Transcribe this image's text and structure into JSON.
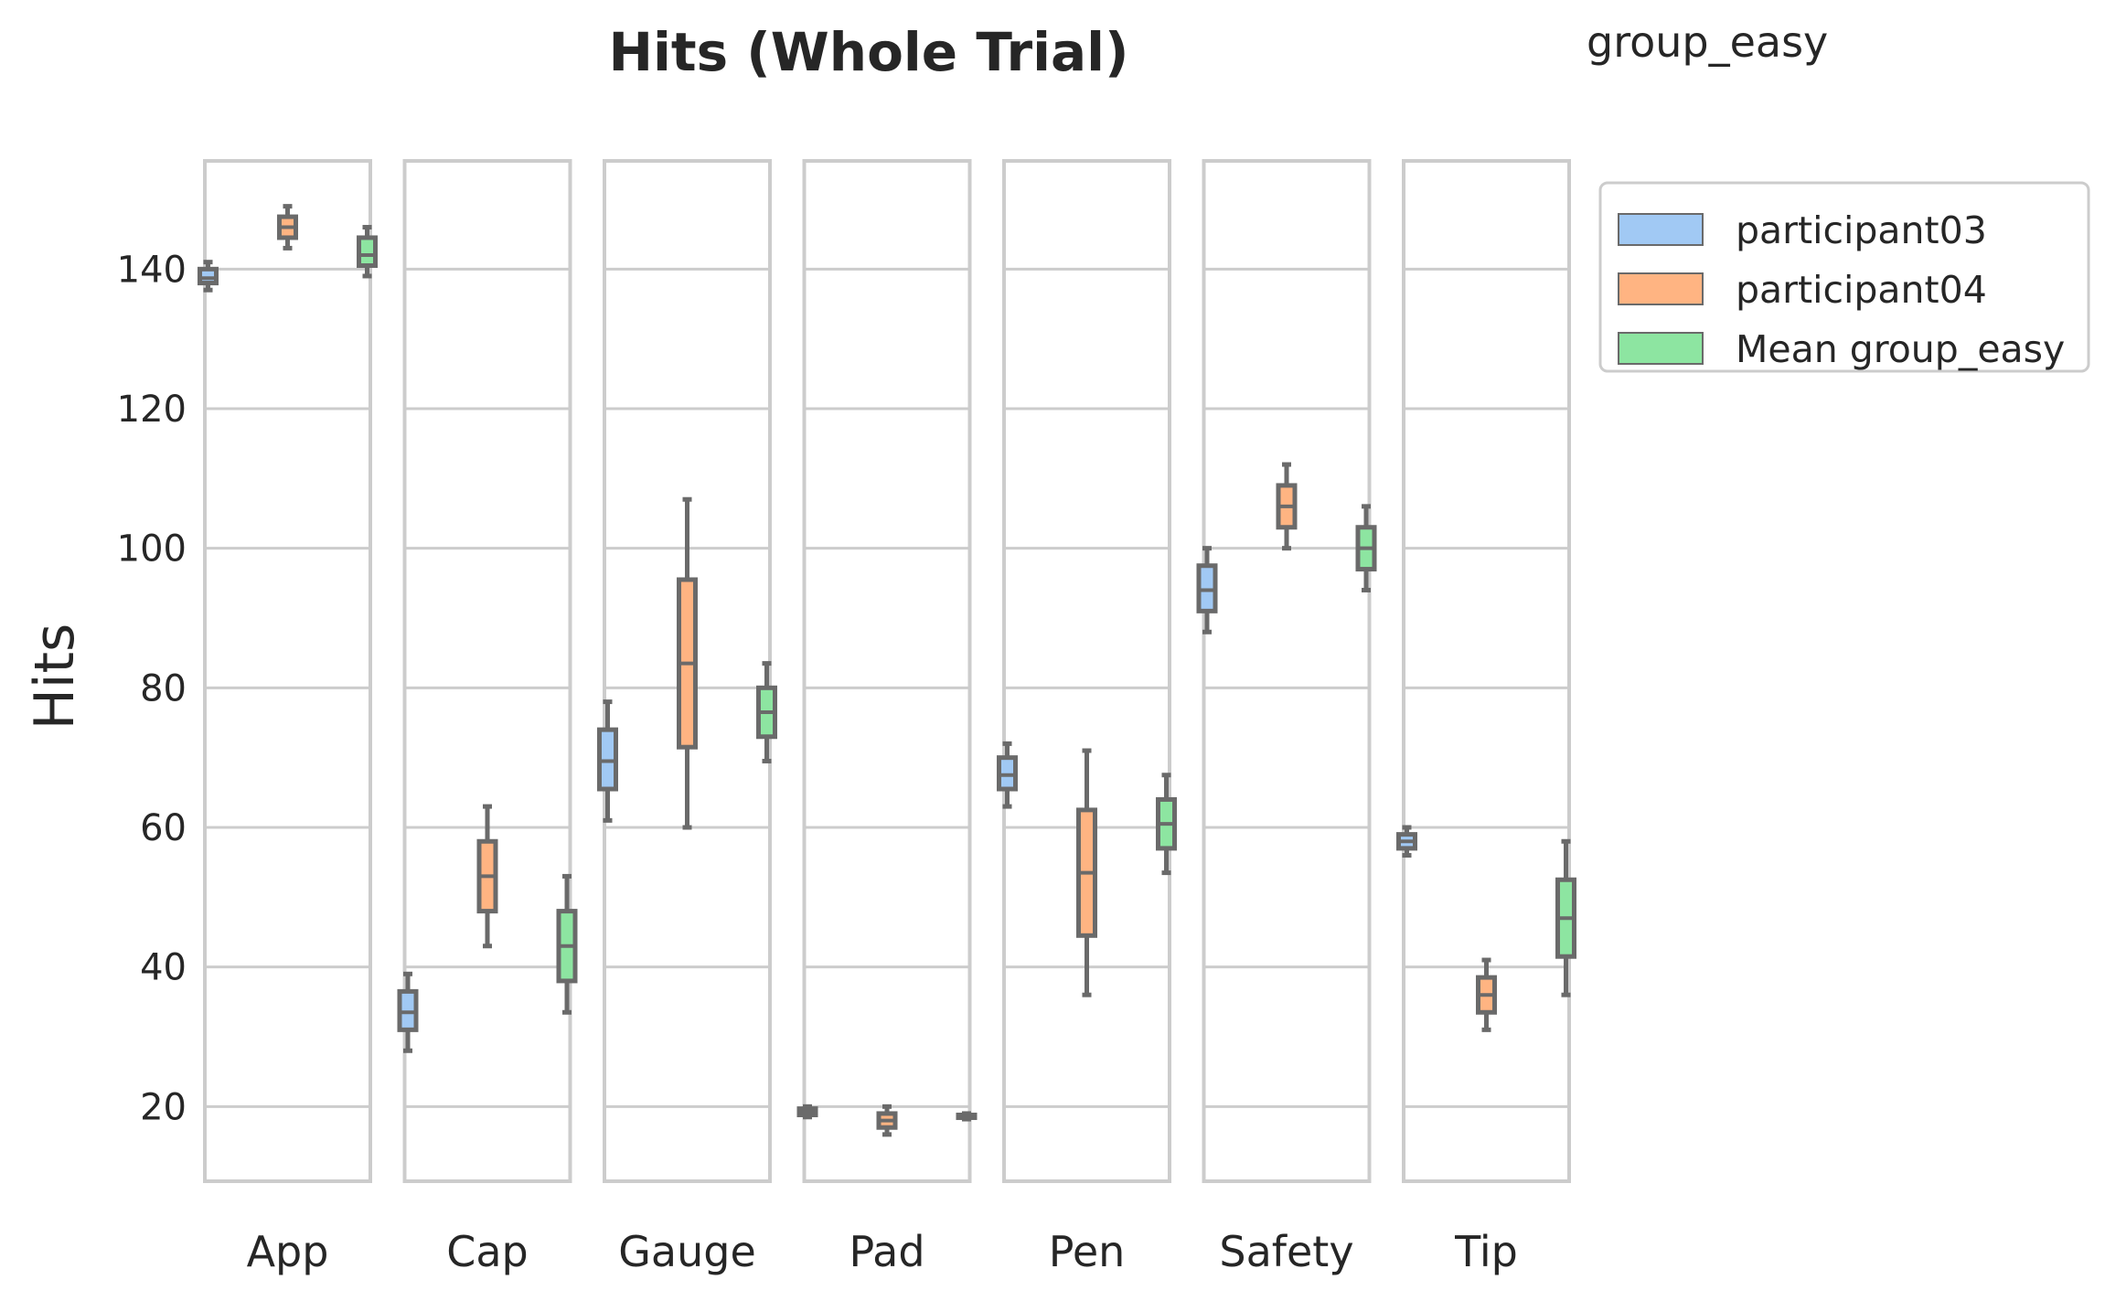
{
  "chart_data": {
    "type": "boxplot",
    "title": "Hits (Whole Trial)",
    "group_label": "group_easy",
    "ylabel": "Hits",
    "xlabel": "",
    "ylim": [
      9.3,
      155.5
    ],
    "yticks": [
      20,
      40,
      60,
      80,
      100,
      120,
      140
    ],
    "grid": true,
    "legend_position": "top-right, outside plot",
    "categories": [
      "App",
      "Cap",
      "Gauge",
      "Pad",
      "Pen",
      "Safety",
      "Tip"
    ],
    "series": [
      {
        "name": "participant03",
        "color": "#a1c9f4",
        "boxes": [
          {
            "min": 137,
            "q1": 138,
            "median": 138.7,
            "q3": 140,
            "max": 141
          },
          {
            "min": 28,
            "q1": 31,
            "median": 33.5,
            "q3": 36.5,
            "max": 39
          },
          {
            "min": 61,
            "q1": 65.5,
            "median": 69.5,
            "q3": 74,
            "max": 78
          },
          {
            "min": 18.5,
            "q1": 18.8,
            "median": 19.2,
            "q3": 19.7,
            "max": 20
          },
          {
            "min": 63,
            "q1": 65.5,
            "median": 67.5,
            "q3": 70,
            "max": 72
          },
          {
            "min": 88,
            "q1": 91,
            "median": 94,
            "q3": 97.5,
            "max": 100
          },
          {
            "min": 56,
            "q1": 57,
            "median": 58,
            "q3": 59,
            "max": 60
          }
        ]
      },
      {
        "name": "participant04",
        "color": "#ffb482",
        "boxes": [
          {
            "min": 143,
            "q1": 144.5,
            "median": 146,
            "q3": 147.5,
            "max": 149
          },
          {
            "min": 43,
            "q1": 48,
            "median": 53,
            "q3": 58,
            "max": 63
          },
          {
            "min": 60,
            "q1": 71.5,
            "median": 83.5,
            "q3": 95.5,
            "max": 107
          },
          {
            "min": 16,
            "q1": 17,
            "median": 18,
            "q3": 19,
            "max": 20
          },
          {
            "min": 36,
            "q1": 44.5,
            "median": 53.5,
            "q3": 62.5,
            "max": 71
          },
          {
            "min": 100,
            "q1": 103,
            "median": 106,
            "q3": 109,
            "max": 112
          },
          {
            "min": 31,
            "q1": 33.5,
            "median": 36,
            "q3": 38.5,
            "max": 41
          }
        ]
      },
      {
        "name": "Mean group_easy",
        "color": "#8de5a1",
        "boxes": [
          {
            "min": 139,
            "q1": 140.5,
            "median": 142,
            "q3": 144.5,
            "max": 146
          },
          {
            "min": 33.5,
            "q1": 38,
            "median": 43,
            "q3": 48,
            "max": 53
          },
          {
            "min": 69.5,
            "q1": 73,
            "median": 76.5,
            "q3": 80,
            "max": 83.5
          },
          {
            "min": 18.2,
            "q1": 18.4,
            "median": 18.6,
            "q3": 18.8,
            "max": 19
          },
          {
            "min": 53.5,
            "q1": 57,
            "median": 60.5,
            "q3": 64,
            "max": 67.5
          },
          {
            "min": 94,
            "q1": 97,
            "median": 100,
            "q3": 103,
            "max": 106
          },
          {
            "min": 36,
            "q1": 41.5,
            "median": 47,
            "q3": 52.5,
            "max": 58
          }
        ]
      }
    ]
  }
}
